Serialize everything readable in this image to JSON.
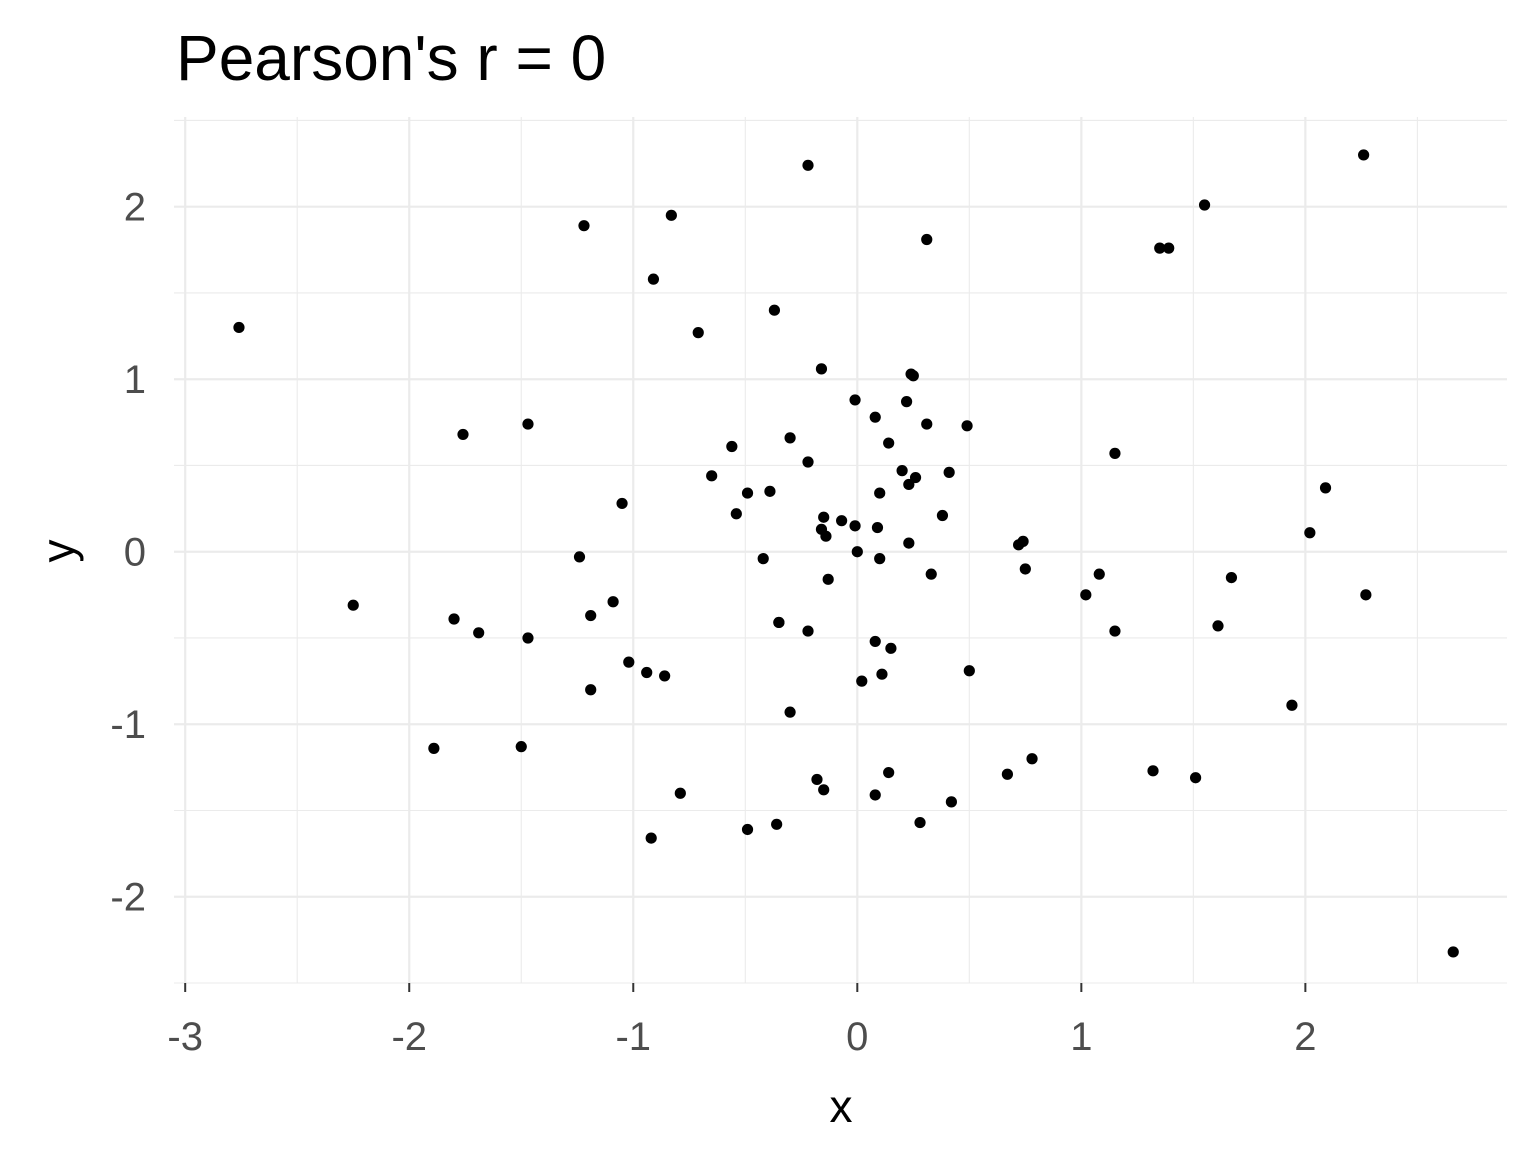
{
  "chart_data": {
    "type": "scatter",
    "title": "Pearson's r = 0",
    "xlabel": "x",
    "ylabel": "y",
    "xlim": [
      -3.05,
      2.9
    ],
    "ylim": [
      -2.5,
      2.52
    ],
    "x_ticks": [
      -3,
      -2,
      -1,
      0,
      1,
      2
    ],
    "x_tick_labels": [
      "-3",
      "-2",
      "-1",
      "0",
      "1",
      "2"
    ],
    "y_ticks": [
      -2,
      -1,
      0,
      1,
      2
    ],
    "y_tick_labels": [
      "-2",
      "-1",
      "0",
      "1",
      "2"
    ],
    "grid": true,
    "point_color": "#000000",
    "background": "#ffffff",
    "grid_color": "#ebebeb",
    "series": [
      {
        "x": [
          -2.76,
          -2.25,
          -1.8,
          -1.76,
          -1.69,
          -1.47,
          -1.47,
          -1.89,
          -1.5,
          -1.24,
          -1.22,
          -1.19,
          -1.19,
          -1.09,
          -1.05,
          -1.02,
          -0.94,
          -0.92,
          -0.91,
          -0.86,
          -0.83,
          -0.79,
          -0.71,
          -0.65,
          -0.56,
          -0.54,
          -0.49,
          -0.49,
          -0.42,
          -0.39,
          -0.37,
          -0.36,
          -0.35,
          -0.35,
          -0.3,
          -0.3,
          -0.22,
          -0.22,
          -0.22,
          -0.18,
          -0.16,
          -0.16,
          -0.15,
          -0.15,
          -0.14,
          -0.13,
          -0.07,
          -0.01,
          -0.01,
          0.0,
          0.02,
          0.08,
          0.08,
          0.08,
          0.09,
          0.1,
          0.1,
          0.11,
          0.14,
          0.14,
          0.15,
          0.2,
          0.22,
          0.23,
          0.23,
          0.24,
          0.25,
          0.26,
          0.28,
          0.31,
          0.31,
          0.33,
          0.38,
          0.41,
          0.42,
          0.49,
          0.5,
          0.67,
          0.72,
          0.74,
          0.75,
          0.78,
          1.02,
          1.08,
          1.15,
          1.15,
          1.32,
          1.35,
          1.39,
          1.51,
          1.55,
          1.61,
          1.67,
          1.94,
          2.02,
          2.09,
          2.26,
          2.27,
          2.66
        ],
        "y": [
          1.3,
          -0.31,
          -0.39,
          0.68,
          -0.47,
          0.74,
          -0.5,
          -1.14,
          -1.13,
          -0.03,
          1.89,
          -0.37,
          -0.8,
          -0.29,
          0.28,
          -0.64,
          -0.7,
          -1.66,
          1.58,
          -0.72,
          1.95,
          -1.4,
          1.27,
          0.44,
          0.61,
          0.22,
          0.34,
          -1.61,
          -0.04,
          0.35,
          1.4,
          -1.58,
          -0.41,
          -0.41,
          0.66,
          -0.93,
          0.52,
          -0.46,
          2.24,
          -1.32,
          0.13,
          1.06,
          0.2,
          -1.38,
          0.09,
          -0.16,
          0.18,
          0.88,
          0.15,
          0.0,
          -0.75,
          0.78,
          -0.52,
          -1.41,
          0.14,
          0.34,
          -0.04,
          -0.71,
          0.63,
          -1.28,
          -0.56,
          0.47,
          0.87,
          0.39,
          0.05,
          1.03,
          1.02,
          0.43,
          -1.57,
          0.74,
          1.81,
          -0.13,
          0.21,
          0.46,
          -1.45,
          0.73,
          -0.69,
          -1.29,
          0.04,
          0.06,
          -0.1,
          -1.2,
          -0.25,
          -0.13,
          -0.46,
          0.57,
          -1.27,
          1.76,
          1.76,
          -1.31,
          2.01,
          -0.43,
          -0.15,
          -0.89,
          0.11,
          0.37,
          2.3,
          -0.25,
          -2.32
        ]
      }
    ]
  }
}
